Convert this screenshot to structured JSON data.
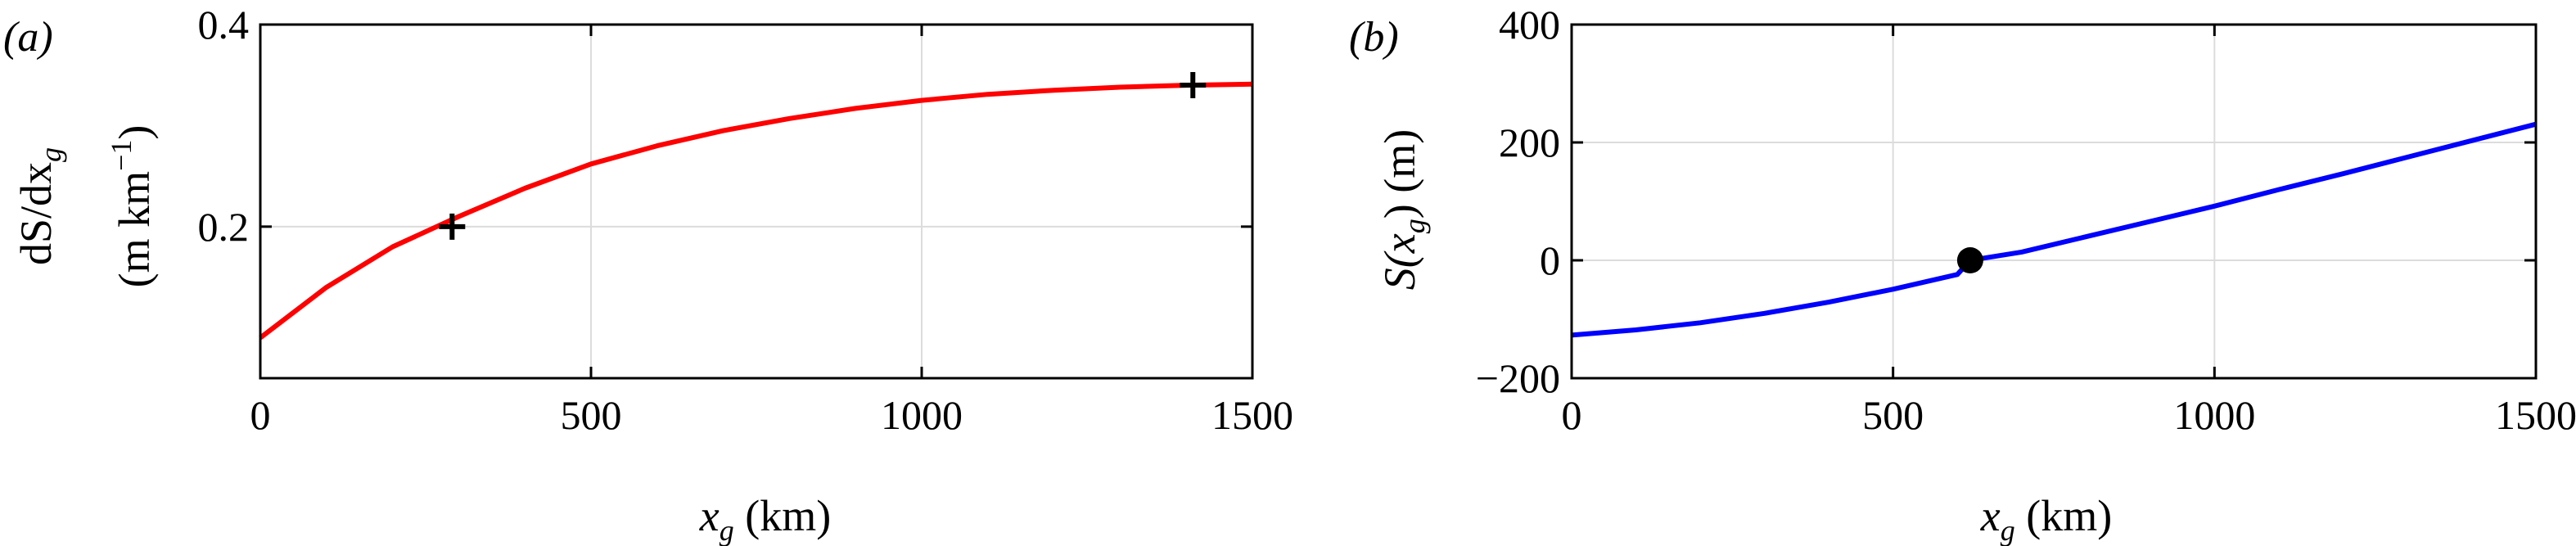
{
  "chart_data": [
    {
      "type": "line",
      "panel_label": "(a)",
      "xlabel": {
        "main": "x",
        "sub": "g",
        "units": " (km)"
      },
      "ylabel": {
        "line1": "dS/dx",
        "line1_sub": "g",
        "line2": "(m km",
        "line2_sup": "−1",
        "line2_end": ")"
      },
      "xlim": [
        0,
        1500
      ],
      "ylim": [
        0.05,
        0.4
      ],
      "xticks": [
        0,
        500,
        1000,
        1500
      ],
      "xtick_labels": [
        "0",
        "500",
        "1000",
        "1500"
      ],
      "yticks": [
        0.2,
        0.4
      ],
      "ytick_labels": [
        "0.2",
        "0.4"
      ],
      "grid": true,
      "series": [
        {
          "color": "#ff0000",
          "x": [
            0,
            100,
            200,
            300,
            400,
            500,
            600,
            700,
            800,
            900,
            1000,
            1100,
            1200,
            1300,
            1400,
            1500
          ],
          "y": [
            0.09,
            0.14,
            0.18,
            0.21,
            0.238,
            0.262,
            0.28,
            0.295,
            0.307,
            0.317,
            0.325,
            0.331,
            0.335,
            0.338,
            0.34,
            0.341
          ]
        }
      ],
      "markers": [
        {
          "symbol": "plus",
          "x": 290,
          "y": 0.2
        },
        {
          "symbol": "plus",
          "x": 1410,
          "y": 0.34
        }
      ]
    },
    {
      "type": "line",
      "panel_label": "(b)",
      "xlabel": {
        "main": "x",
        "sub": "g",
        "units": " (km)"
      },
      "ylabel": {
        "pre": "S(x",
        "sub": "g",
        "post": ") (m)"
      },
      "xlim": [
        0,
        1500
      ],
      "ylim": [
        -200,
        400
      ],
      "xticks": [
        0,
        500,
        1000,
        1500
      ],
      "xtick_labels": [
        "0",
        "500",
        "1000",
        "1500"
      ],
      "yticks": [
        -200,
        0,
        200,
        400
      ],
      "ytick_labels": [
        "−200",
        "0",
        "200",
        "400"
      ],
      "grid": true,
      "series": [
        {
          "color": "#0000ff",
          "x": [
            0,
            100,
            200,
            300,
            400,
            500,
            600,
            620,
            700,
            800,
            900,
            1000,
            1100,
            1200,
            1300,
            1400,
            1500
          ],
          "y": [
            -127,
            -118,
            -106,
            -90,
            -71,
            -49,
            -24,
            0,
            14,
            40,
            66,
            92,
            120,
            147,
            175,
            203,
            231
          ]
        }
      ],
      "markers": [
        {
          "symbol": "dot",
          "x": 620,
          "y": 0
        }
      ]
    }
  ]
}
